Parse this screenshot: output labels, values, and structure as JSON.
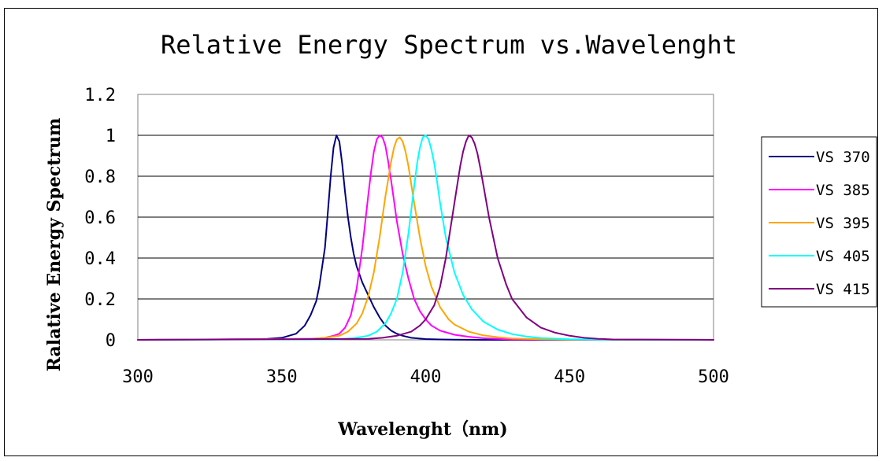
{
  "chart_data": {
    "type": "line",
    "title": "Relative Energy Spectrum vs.Wavelenght",
    "xlabel": "Wavelenght（nm)",
    "ylabel": "Ralative Energy Spectrum",
    "xlim": [
      300,
      500
    ],
    "ylim": [
      0,
      1.2
    ],
    "x_ticks": [
      300,
      350,
      400,
      450,
      500
    ],
    "x_tick_labels": [
      "300",
      "350",
      "400",
      "450",
      "500"
    ],
    "y_ticks": [
      0,
      0.2,
      0.4,
      0.6,
      0.8,
      1,
      1.2
    ],
    "y_tick_labels": [
      "0",
      "0.2",
      "0.4",
      "0.6",
      "0.8",
      "1",
      "1.2"
    ],
    "grid": "horizontal",
    "legend_position": "right",
    "series": [
      {
        "name": "VS 370",
        "color": "#000080",
        "x": [
          300,
          340,
          345,
          350,
          355,
          358,
          360,
          362,
          363,
          365,
          366,
          367,
          368,
          369,
          370,
          371,
          372,
          373,
          374,
          375,
          376,
          378,
          380,
          382,
          384,
          386,
          388,
          390,
          392,
          395,
          398,
          400,
          405,
          410,
          420,
          500
        ],
        "y": [
          0,
          0.003,
          0.005,
          0.01,
          0.03,
          0.07,
          0.12,
          0.19,
          0.26,
          0.45,
          0.62,
          0.8,
          0.94,
          1.0,
          0.97,
          0.86,
          0.72,
          0.6,
          0.5,
          0.42,
          0.36,
          0.28,
          0.22,
          0.16,
          0.11,
          0.07,
          0.045,
          0.03,
          0.02,
          0.01,
          0.006,
          0.004,
          0.002,
          0.001,
          0,
          0
        ]
      },
      {
        "name": "VS 385",
        "color": "#FF00FF",
        "x": [
          300,
          360,
          365,
          368,
          370,
          372,
          374,
          376,
          378,
          380,
          381,
          382,
          383,
          384,
          385,
          386,
          387,
          388,
          389,
          390,
          392,
          394,
          396,
          398,
          400,
          402,
          405,
          410,
          415,
          420,
          430,
          500
        ],
        "y": [
          0,
          0.005,
          0.01,
          0.02,
          0.03,
          0.06,
          0.12,
          0.25,
          0.45,
          0.7,
          0.82,
          0.92,
          0.98,
          1.0,
          0.99,
          0.95,
          0.87,
          0.78,
          0.68,
          0.58,
          0.42,
          0.3,
          0.2,
          0.14,
          0.1,
          0.07,
          0.045,
          0.025,
          0.015,
          0.008,
          0.002,
          0
        ]
      },
      {
        "name": "VS 395",
        "color": "#FFA500",
        "x": [
          300,
          360,
          365,
          370,
          373,
          376,
          378,
          380,
          382,
          384,
          386,
          388,
          389,
          390,
          391,
          392,
          393,
          394,
          395,
          396,
          398,
          400,
          402,
          405,
          408,
          410,
          415,
          420,
          425,
          430,
          440,
          450,
          500
        ],
        "y": [
          0,
          0.004,
          0.01,
          0.02,
          0.04,
          0.08,
          0.13,
          0.21,
          0.33,
          0.5,
          0.7,
          0.87,
          0.94,
          0.98,
          0.99,
          0.97,
          0.92,
          0.85,
          0.76,
          0.67,
          0.5,
          0.36,
          0.26,
          0.16,
          0.1,
          0.075,
          0.04,
          0.022,
          0.013,
          0.007,
          0.003,
          0.001,
          0
        ]
      },
      {
        "name": "VS 405",
        "color": "#00FFFF",
        "x": [
          300,
          370,
          375,
          380,
          383,
          386,
          388,
          390,
          392,
          394,
          396,
          397,
          398,
          399,
          400,
          401,
          402,
          403,
          404,
          405,
          407,
          410,
          413,
          416,
          420,
          425,
          430,
          435,
          440,
          450,
          460,
          500
        ],
        "y": [
          0,
          0.003,
          0.008,
          0.02,
          0.04,
          0.08,
          0.13,
          0.2,
          0.33,
          0.52,
          0.75,
          0.86,
          0.94,
          0.99,
          1.0,
          0.98,
          0.93,
          0.86,
          0.77,
          0.67,
          0.5,
          0.33,
          0.22,
          0.15,
          0.09,
          0.05,
          0.028,
          0.016,
          0.009,
          0.003,
          0.001,
          0
        ]
      },
      {
        "name": "VS 415",
        "color": "#800080",
        "x": [
          300,
          380,
          385,
          390,
          395,
          398,
          400,
          403,
          405,
          407,
          409,
          411,
          412,
          413,
          414,
          415,
          416,
          417,
          418,
          419,
          420,
          422,
          425,
          428,
          430,
          435,
          440,
          445,
          450,
          455,
          460,
          465,
          500
        ],
        "y": [
          0,
          0.005,
          0.01,
          0.02,
          0.04,
          0.07,
          0.1,
          0.17,
          0.26,
          0.4,
          0.58,
          0.76,
          0.85,
          0.92,
          0.97,
          1.0,
          0.99,
          0.96,
          0.91,
          0.84,
          0.76,
          0.6,
          0.4,
          0.27,
          0.2,
          0.11,
          0.06,
          0.035,
          0.02,
          0.01,
          0.005,
          0.002,
          0
        ]
      }
    ]
  }
}
